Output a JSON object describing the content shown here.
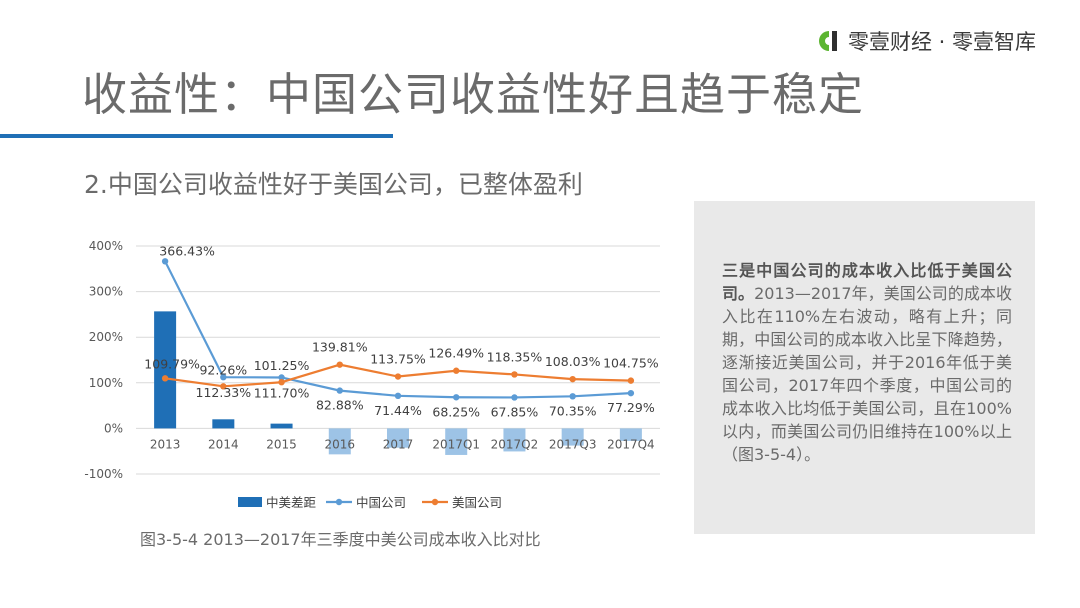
{
  "brand": {
    "name": "零壹财经 · 零壹智库",
    "logo_icon": "lingyi-logo-icon",
    "logo_color": "#5cb531"
  },
  "page_title": "收益性：中国公司收益性好且趋于稳定",
  "subtitle": "2.中国公司收益性好于美国公司，已整体盈利",
  "figure_caption": "图3-5-4 2013—2017年三季度中美公司成本收入比对比",
  "panel": {
    "bold_text": "三是中国公司的成本收入比低于美国公司。",
    "body_text": "2013—2017年，美国公司的成本收入比在110%左右波动，略有上升；同期，中国公司的成本收入比呈下降趋势，逐渐接近美国公司，并于2016年低于美国公司，2017年四个季度，中国公司的成本收入比均低于美国公司，且在100%以内，而美国公司仍旧维持在100%以上（图3-5-4）。"
  },
  "chart_data": {
    "type": "bar",
    "categories": [
      "2013",
      "2014",
      "2015",
      "2016",
      "2017",
      "2017Q1",
      "2017Q2",
      "2017Q3",
      "2017Q4"
    ],
    "y_ticks": [
      "400%",
      "300%",
      "200%",
      "100%",
      "0%",
      "-100%"
    ],
    "ylim": [
      -100,
      400
    ],
    "grid": true,
    "legend_position": "bottom",
    "series": [
      {
        "name": "中美差距",
        "kind": "bar",
        "color": "#1f6fb6",
        "negative_color": "#9dc3e6",
        "values": [
          256.64,
          19.93,
          10.45,
          -56.93,
          -42.31,
          -58.24,
          -50.5,
          -37.68,
          -27.46
        ]
      },
      {
        "name": "中国公司",
        "kind": "line",
        "color": "#5b9bd5",
        "values": [
          366.43,
          112.33,
          111.7,
          82.88,
          71.44,
          68.25,
          67.85,
          70.35,
          77.29
        ],
        "labels": [
          "366.43%",
          "112.33%",
          "111.70%",
          "82.88%",
          "71.44%",
          "68.25%",
          "67.85%",
          "70.35%",
          "77.29%"
        ]
      },
      {
        "name": "美国公司",
        "kind": "line",
        "color": "#ed7d31",
        "values": [
          109.79,
          92.26,
          101.25,
          139.81,
          113.75,
          126.49,
          118.35,
          108.03,
          104.75
        ],
        "labels": [
          "109.79%",
          "92.26%",
          "101.25%",
          "139.81%",
          "113.75%",
          "126.49%",
          "118.35%",
          "108.03%",
          "104.75%"
        ]
      }
    ]
  }
}
